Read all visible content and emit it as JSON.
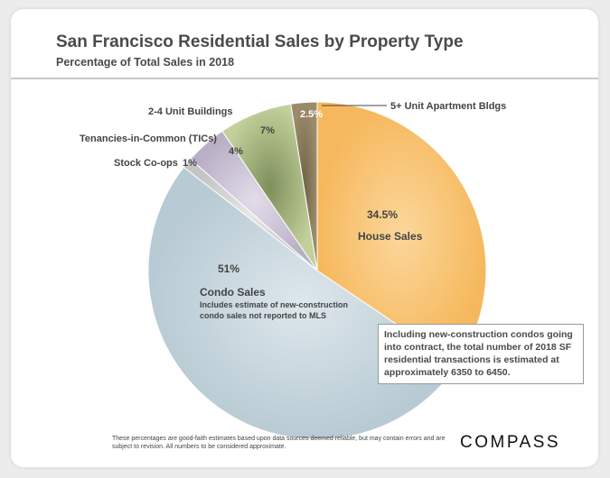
{
  "chart_data": {
    "type": "pie",
    "title": "San Francisco Residential Sales by Property Type",
    "subtitle": "Percentage of Total Sales in 2018",
    "slices": [
      {
        "name": "House Sales",
        "value": 34.5,
        "label": "34.5%",
        "color": "#f9c47a"
      },
      {
        "name": "Condo Sales",
        "value": 51,
        "label": "51%",
        "color": "#c4d3db",
        "note": "Includes estimate of new-construction condo sales not reported to MLS"
      },
      {
        "name": "Stock Co-ops",
        "value": 1,
        "label": "1%",
        "color": "#d4d4d4"
      },
      {
        "name": "Tenancies-in-Common (TICs)",
        "value": 4,
        "label": "4%",
        "color": "#cec7d8"
      },
      {
        "name": "2-4 Unit Buildings",
        "value": 7,
        "label": "7%",
        "color": "#a9ba82"
      },
      {
        "name": "5+ Unit Apartment Bldgs",
        "value": 2.5,
        "label": "2.5%",
        "color": "#8a7a5c"
      }
    ]
  },
  "annotation_box": "Including new-construction condos going into contract, the total number of 2018 SF residential transactions is estimated at approximately 6350 to 6450.",
  "footnote": "These percentages are good-faith estimates based upon data sources deemed reliable, but may contain errors and are subject to revision. All numbers to be considered approximate.",
  "brand": "COMPASS"
}
